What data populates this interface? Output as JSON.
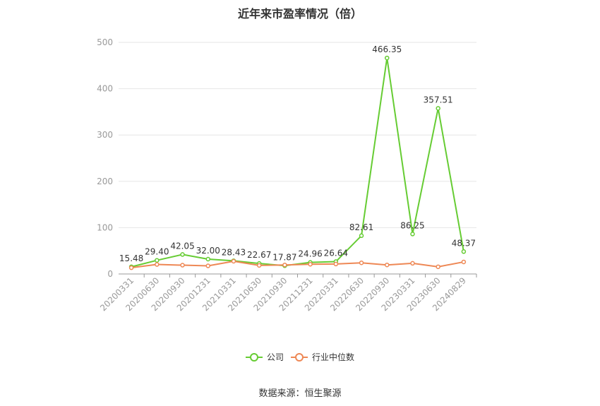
{
  "title": "近年来市盈率情况（倍）",
  "source": "数据来源：恒生聚源",
  "chart_data": {
    "type": "line",
    "categories": [
      "20200331",
      "20200630",
      "20200930",
      "20201231",
      "20210331",
      "20210630",
      "20210930",
      "20211231",
      "20220331",
      "20220630",
      "20220930",
      "20230331",
      "20230630",
      "20240829"
    ],
    "ylim": [
      0,
      500
    ],
    "yticks": [
      0,
      100,
      200,
      300,
      400,
      500
    ],
    "grid": true,
    "legend_position": "bottom",
    "series": [
      {
        "name": "公司",
        "color": "#66cc33",
        "values": [
          15.48,
          29.4,
          42.05,
          32.0,
          28.43,
          22.67,
          17.87,
          24.96,
          26.64,
          82.61,
          466.35,
          86.25,
          357.51,
          48.37
        ],
        "labels": [
          "15.48",
          "29.40",
          "42.05",
          "32.00",
          "28.43",
          "22.67",
          "17.87",
          "24.96",
          "26.64",
          "82.61",
          "466.35",
          "86.25",
          "357.51",
          "48.37"
        ]
      },
      {
        "name": "行业中位数",
        "color": "#ee8855",
        "values": [
          13.5,
          20.5,
          19.0,
          17.5,
          27.5,
          18.5,
          19.5,
          21.0,
          21.5,
          24.0,
          19.5,
          23.0,
          15.5,
          26.0
        ]
      }
    ]
  }
}
